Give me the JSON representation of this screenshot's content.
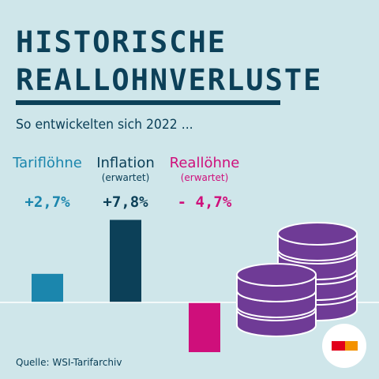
{
  "title_lines": [
    "HISTORISCHE",
    "REALLOHNVERLUSTE"
  ],
  "subtitle": "So entwickelten sich 2022 ...",
  "source": "Quelle: WSI-Tarifarchiv",
  "colors": {
    "background": "#cfe6ea",
    "title": "#0c4058",
    "tariff": "#1b86ad",
    "inflation": "#0c4058",
    "real_wages": "#cf0f7b",
    "coins": "#6f3b96",
    "coin_edge": "#ffffff"
  },
  "icons": [
    "coin-stack-icon",
    "logo-icon"
  ],
  "chart_data": {
    "type": "bar",
    "categories": [
      "Tariflöhne",
      "Inflation",
      "Reallöhne"
    ],
    "category_notes": [
      "",
      "(erwartet)",
      "(erwartet)"
    ],
    "values": [
      2.7,
      7.8,
      -4.7
    ],
    "value_labels": [
      "+2,7%",
      "+7,8%",
      "- 4,7%"
    ],
    "unit": "%",
    "ylim": [
      -5.5,
      8.0
    ],
    "grid": false,
    "legend": "none"
  }
}
